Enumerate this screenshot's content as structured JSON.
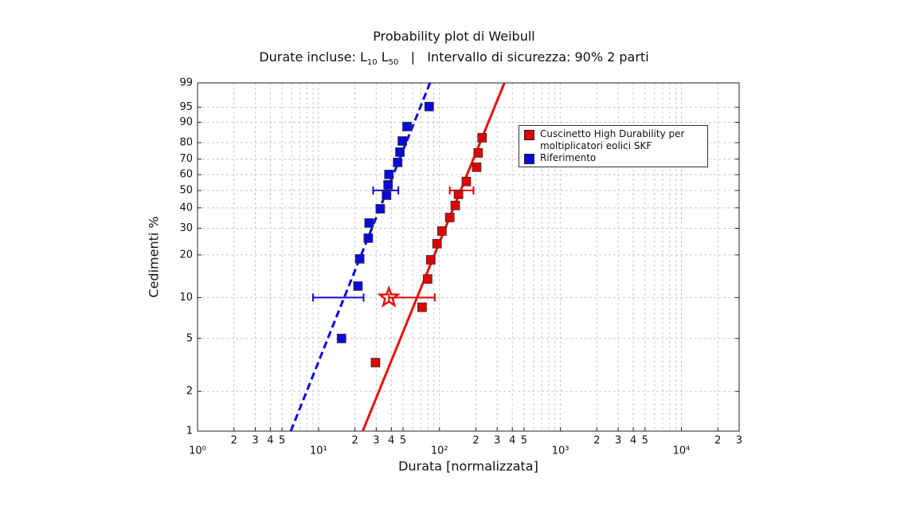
{
  "chart_data": {
    "type": "scatter",
    "title": "Probability plot di Weibull",
    "subtitle": {
      "prefix": "Durate incluse: ",
      "terms": [
        {
          "base": "L",
          "sub": "10"
        },
        {
          "base": "L",
          "sub": "50"
        }
      ],
      "separator": "|",
      "suffix": "Intervallo di sicurezza: 90% 2 parti"
    },
    "x_label": "Durata [normalizzata]",
    "y_label": "Cedimenti %",
    "x_scale": "log",
    "y_scale": "weibull",
    "xlim": [
      1,
      30000
    ],
    "ylim": [
      1,
      99
    ],
    "xticks": [
      {
        "value": 1,
        "label": "10⁰"
      },
      2,
      3,
      4,
      5,
      {
        "value": 10,
        "label": "10¹"
      },
      {
        "value": 20,
        "label": "2"
      },
      {
        "value": 30,
        "label": "3"
      },
      {
        "value": 40,
        "label": "4"
      },
      {
        "value": 50,
        "label": "5"
      },
      {
        "value": 100,
        "label": "10²"
      },
      {
        "value": 200,
        "label": "2"
      },
      {
        "value": 300,
        "label": "3"
      },
      {
        "value": 400,
        "label": "4"
      },
      {
        "value": 500,
        "label": "5"
      },
      {
        "value": 1000,
        "label": "10³"
      },
      {
        "value": 2000,
        "label": "2"
      },
      {
        "value": 3000,
        "label": "3"
      },
      {
        "value": 4000,
        "label": "4"
      },
      {
        "value": 5000,
        "label": "5"
      },
      {
        "value": 10000,
        "label": "10⁴"
      },
      {
        "value": 20000,
        "label": "2"
      },
      {
        "value": 30000,
        "label": "3"
      }
    ],
    "xminorticks": [
      6,
      7,
      8,
      9,
      60,
      70,
      80,
      90,
      600,
      700,
      800,
      900,
      6000,
      7000,
      8000,
      9000
    ],
    "yticks": [
      1,
      2,
      5,
      10,
      20,
      30,
      40,
      50,
      60,
      70,
      80,
      90,
      95,
      99
    ],
    "grid": true,
    "legend": "upper right",
    "series": [
      {
        "name": "Cuscinetto High Durability per moltiplicatori eolici SKF",
        "color": "#e00000",
        "x": [
          29.6,
          71.8,
          79.8,
          84.7,
          95.5,
          104.7,
          121.6,
          135,
          143.6,
          166.7,
          202.8,
          209,
          225
        ],
        "y": [
          3.3,
          8.5,
          13.6,
          18.5,
          23.8,
          28.8,
          35,
          41.3,
          47.7,
          55.6,
          64.8,
          73.9,
          82.7
        ]
      },
      {
        "name": "Riferimento",
        "color": "#0a0ad8",
        "x": [
          15.5,
          21.2,
          21.9,
          25.8,
          26.2,
          32.4,
          36.5,
          37.6,
          38.2,
          45.1,
          47.1,
          49.3,
          53.9,
          82.2
        ],
        "y": [
          5,
          12.1,
          18.8,
          25.9,
          32.4,
          39.5,
          47.2,
          53.5,
          60.1,
          67.9,
          74.4,
          80.9,
          88.2,
          95.2
        ]
      }
    ],
    "fits": [
      {
        "color": "#e81010",
        "dashed": false,
        "x": [
          23.2,
          344
        ],
        "y": [
          1,
          99
        ]
      },
      {
        "color": "#0a0ad8",
        "dashed": true,
        "x": [
          5.9,
          83.5
        ],
        "y": [
          1,
          99
        ]
      }
    ],
    "intervals": [
      {
        "color": "#0a0ad8",
        "y": 10,
        "x": [
          9.0,
          23.6
        ]
      },
      {
        "color": "#0a0ad8",
        "y": 50,
        "x": [
          28.3,
          45.7
        ]
      },
      {
        "color": "#e00000",
        "y": 50,
        "x": [
          121.6,
          191
        ]
      },
      {
        "color": "#e00000",
        "y": 10,
        "x": [
          38.2,
          91.4
        ]
      }
    ],
    "markers": [
      {
        "shape": "star",
        "color": "#e81010",
        "x": 38.2,
        "y": 10
      }
    ]
  }
}
